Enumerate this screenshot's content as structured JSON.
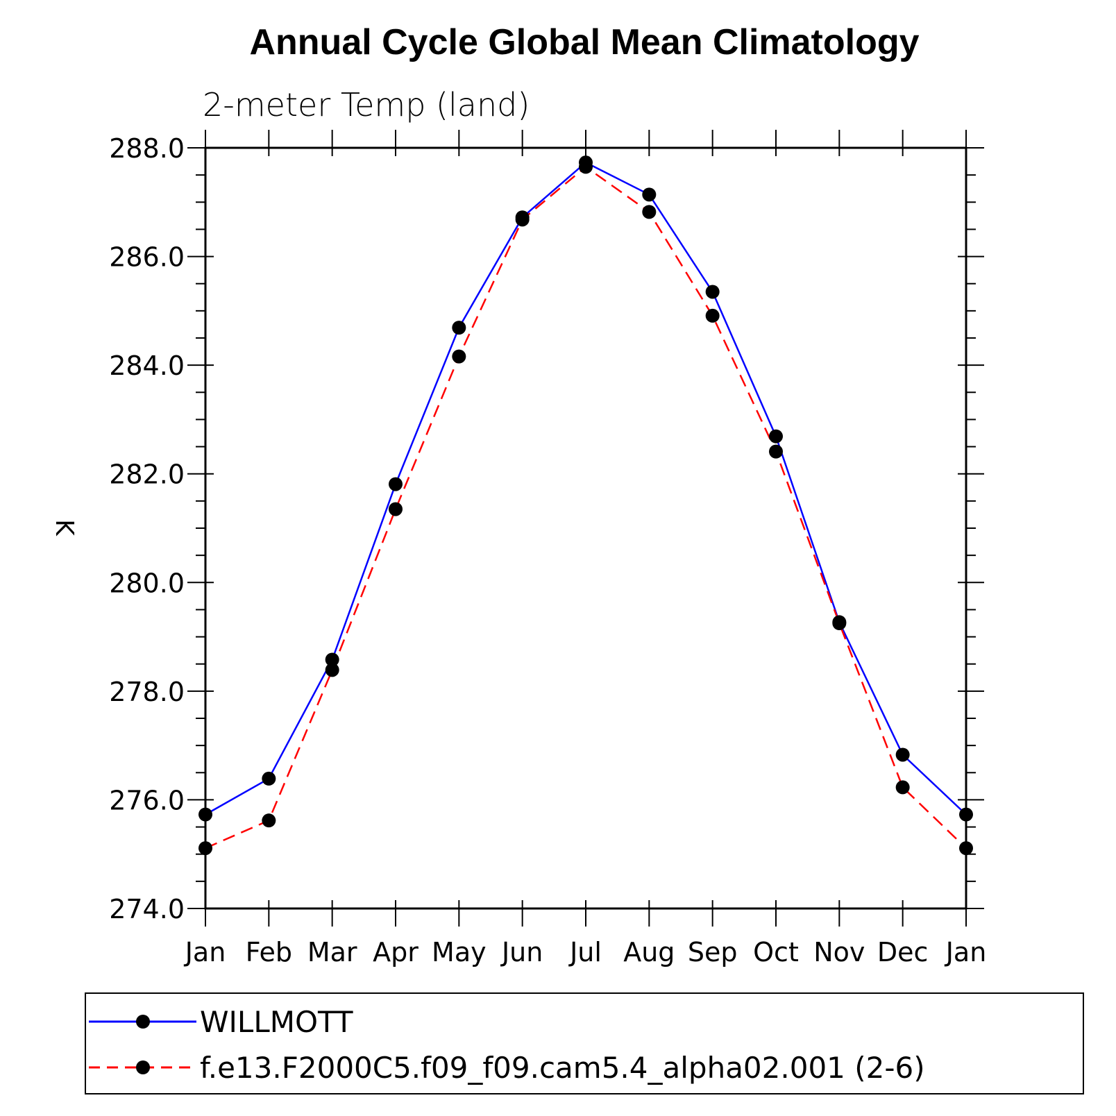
{
  "chart_data": {
    "type": "line",
    "title": "Annual Cycle Global Mean Climatology",
    "subtitle": "2-meter Temp (land)",
    "xlabel": "",
    "ylabel": "K",
    "categories": [
      "Jan",
      "Feb",
      "Mar",
      "Apr",
      "May",
      "Jun",
      "Jul",
      "Aug",
      "Sep",
      "Oct",
      "Nov",
      "Dec",
      "Jan"
    ],
    "ylim": [
      274.0,
      288.0
    ],
    "yticks": [
      "274.0",
      "276.0",
      "278.0",
      "280.0",
      "282.0",
      "284.0",
      "286.0",
      "288.0"
    ],
    "y_minor_step": 0.5,
    "series": [
      {
        "name": "WILLMOTT",
        "color": "#0000ff",
        "dash": "solid",
        "values": [
          275.73,
          276.39,
          278.58,
          281.81,
          284.69,
          286.72,
          287.73,
          287.14,
          285.35,
          282.69,
          279.27,
          276.83,
          275.73
        ]
      },
      {
        "name": "f.e13.F2000C5.f09_f09.cam5.4_alpha02.001 (2-6)",
        "color": "#ff0000",
        "dash": "dashed",
        "values": [
          275.11,
          275.62,
          278.39,
          281.35,
          284.16,
          286.68,
          287.65,
          286.82,
          284.91,
          282.41,
          279.25,
          276.23,
          275.11
        ]
      }
    ],
    "legend_position": "bottom"
  }
}
